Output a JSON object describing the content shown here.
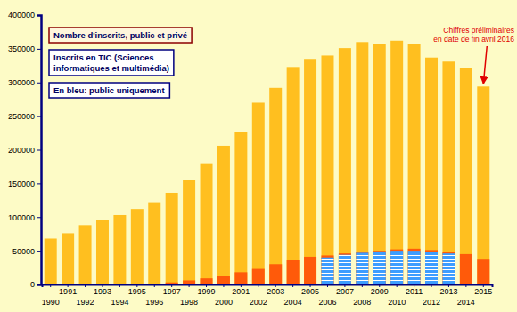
{
  "chart_data": {
    "type": "bar",
    "categories": [
      "1990",
      "1991",
      "1992",
      "1993",
      "1994",
      "1995",
      "1996",
      "1997",
      "1998",
      "1999",
      "2000",
      "2001",
      "2002",
      "2003",
      "2004",
      "2005",
      "2006",
      "2007",
      "2008",
      "2009",
      "2010",
      "2011",
      "2012",
      "2013",
      "2014",
      "2015"
    ],
    "series": [
      {
        "name": "Nombre d'inscrits, public et privé",
        "color": "#ffbf1f",
        "values": [
          68000,
          76000,
          88000,
          96000,
          103000,
          112000,
          122000,
          136000,
          155000,
          180000,
          206000,
          226000,
          270000,
          292000,
          323000,
          335000,
          340000,
          351000,
          360000,
          357000,
          362000,
          357000,
          337000,
          331000,
          322000,
          294000
        ]
      },
      {
        "name": "Inscrits en TIC (Sciences informatiques et multimédia)",
        "color": "#ff5a0a",
        "values": [
          null,
          null,
          null,
          null,
          null,
          null,
          null,
          3000,
          6000,
          9000,
          12000,
          18000,
          23000,
          30000,
          36000,
          41000,
          43000,
          46000,
          48000,
          50000,
          52000,
          53000,
          51000,
          48000,
          45000,
          38000
        ]
      },
      {
        "name": "En bleu: public uniquement",
        "color": "#3d9dff",
        "values": [
          null,
          null,
          null,
          null,
          null,
          null,
          null,
          null,
          null,
          null,
          null,
          null,
          null,
          null,
          null,
          null,
          40000,
          44000,
          47000,
          49000,
          50000,
          50000,
          48000,
          46000,
          null,
          null
        ]
      }
    ],
    "annotations": [
      "Chiffres préliminaires",
      "en date de fin avril 2016"
    ],
    "ylim": [
      0,
      400000
    ],
    "yticks": [
      0,
      50000,
      100000,
      150000,
      200000,
      250000,
      300000,
      350000,
      400000
    ],
    "stacked": false,
    "grid": false
  }
}
